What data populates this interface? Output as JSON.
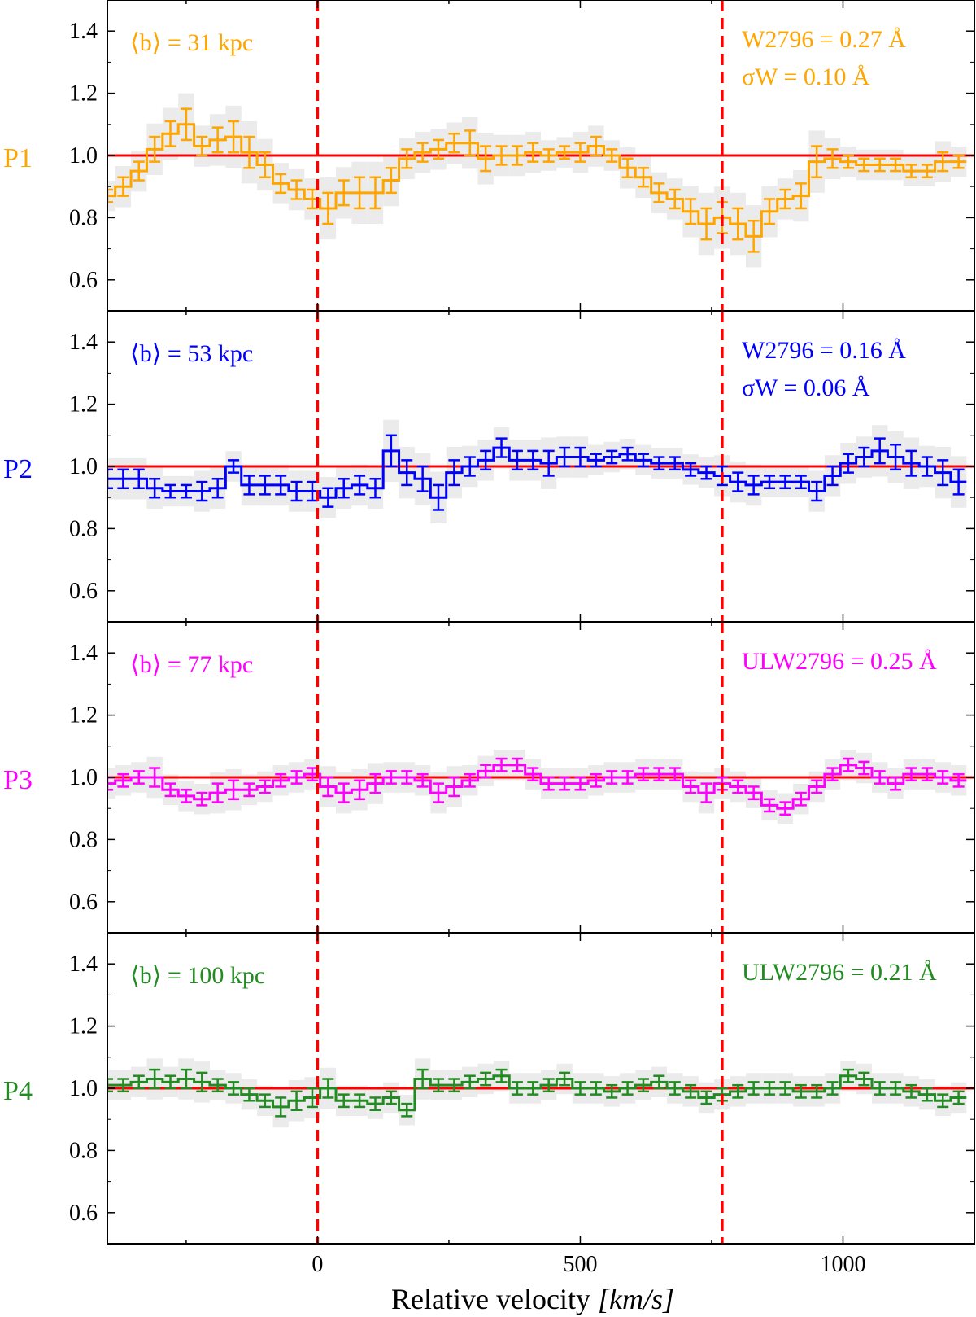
{
  "figure": {
    "xlabel": "Relative velocity",
    "xunit": "[km/s]",
    "reference_line_color": "#ff0000"
  },
  "chart_data": [
    {
      "type": "line",
      "panel": "P1",
      "color": "#ffa500",
      "impact_label": "⟨b⟩ = 31 kpc",
      "ew_label": "W2796 = 0.27 Å",
      "sigma_label": "σW = 0.10 Å",
      "xlim": [
        -400,
        1250
      ],
      "ylim": [
        0.5,
        1.5
      ],
      "xticks": [
        0,
        500,
        1000
      ],
      "yticks": [
        0.6,
        0.8,
        1.0,
        1.2,
        1.4
      ],
      "vlines": [
        0,
        770
      ],
      "hline": 1.0,
      "x": [
        -400,
        -370,
        -340,
        -310,
        -280,
        -250,
        -220,
        -190,
        -160,
        -130,
        -100,
        -70,
        -40,
        -10,
        20,
        50,
        80,
        110,
        140,
        170,
        200,
        230,
        260,
        290,
        320,
        350,
        380,
        410,
        440,
        470,
        500,
        530,
        560,
        590,
        620,
        650,
        680,
        710,
        740,
        770,
        800,
        830,
        860,
        890,
        920,
        950,
        980,
        1010,
        1040,
        1070,
        1100,
        1130,
        1160,
        1190,
        1220
      ],
      "y": [
        0.87,
        0.9,
        0.95,
        1.02,
        1.07,
        1.1,
        1.03,
        1.05,
        1.06,
        1.01,
        0.97,
        0.91,
        0.89,
        0.86,
        0.83,
        0.88,
        0.88,
        0.88,
        0.92,
        0.99,
        1.01,
        1.02,
        1.04,
        1.04,
        0.99,
        1.0,
        1.0,
        1.01,
        1.0,
        1.01,
        1.01,
        1.03,
        1.0,
        0.96,
        0.93,
        0.88,
        0.86,
        0.82,
        0.78,
        0.8,
        0.78,
        0.74,
        0.82,
        0.86,
        0.87,
        0.98,
        0.99,
        0.98,
        0.97,
        0.97,
        0.97,
        0.95,
        0.95,
        0.98,
        0.98
      ],
      "err": [
        0.02,
        0.03,
        0.03,
        0.04,
        0.04,
        0.05,
        0.03,
        0.04,
        0.05,
        0.05,
        0.04,
        0.03,
        0.03,
        0.03,
        0.05,
        0.04,
        0.05,
        0.05,
        0.04,
        0.03,
        0.03,
        0.03,
        0.03,
        0.04,
        0.04,
        0.03,
        0.03,
        0.03,
        0.02,
        0.02,
        0.03,
        0.03,
        0.02,
        0.03,
        0.03,
        0.03,
        0.03,
        0.04,
        0.05,
        0.05,
        0.05,
        0.05,
        0.04,
        0.03,
        0.04,
        0.05,
        0.03,
        0.02,
        0.02,
        0.02,
        0.02,
        0.02,
        0.02,
        0.03,
        0.02
      ]
    },
    {
      "type": "line",
      "panel": "P2",
      "color": "#0000ff",
      "impact_label": "⟨b⟩ = 53 kpc",
      "ew_label": "W2796 = 0.16 Å",
      "sigma_label": "σW = 0.06 Å",
      "xlim": [
        -400,
        1250
      ],
      "ylim": [
        0.5,
        1.5
      ],
      "xticks": [
        0,
        500,
        1000
      ],
      "yticks": [
        0.6,
        0.8,
        1.0,
        1.2,
        1.4
      ],
      "vlines": [
        0,
        770
      ],
      "hline": 1.0,
      "x": [
        -400,
        -370,
        -340,
        -310,
        -280,
        -250,
        -220,
        -190,
        -160,
        -130,
        -100,
        -70,
        -40,
        -10,
        20,
        50,
        80,
        110,
        140,
        170,
        200,
        230,
        260,
        290,
        320,
        350,
        380,
        410,
        440,
        470,
        500,
        530,
        560,
        590,
        620,
        650,
        680,
        710,
        740,
        770,
        800,
        830,
        860,
        890,
        920,
        950,
        980,
        1010,
        1040,
        1070,
        1100,
        1130,
        1160,
        1190,
        1220
      ],
      "y": [
        0.96,
        0.96,
        0.96,
        0.93,
        0.92,
        0.92,
        0.92,
        0.93,
        1.0,
        0.94,
        0.94,
        0.94,
        0.92,
        0.92,
        0.9,
        0.93,
        0.94,
        0.93,
        1.05,
        0.98,
        0.96,
        0.9,
        0.98,
        1.0,
        1.02,
        1.06,
        1.02,
        1.02,
        1.01,
        1.03,
        1.03,
        1.02,
        1.03,
        1.04,
        1.02,
        1.01,
        1.01,
        0.99,
        0.98,
        0.97,
        0.95,
        0.94,
        0.95,
        0.95,
        0.95,
        0.92,
        0.97,
        1.01,
        1.03,
        1.05,
        1.03,
        1.01,
        1.0,
        0.98,
        0.95
      ],
      "err": [
        0.03,
        0.03,
        0.03,
        0.03,
        0.02,
        0.02,
        0.03,
        0.03,
        0.02,
        0.03,
        0.03,
        0.03,
        0.03,
        0.03,
        0.03,
        0.03,
        0.03,
        0.03,
        0.05,
        0.04,
        0.04,
        0.04,
        0.04,
        0.03,
        0.03,
        0.03,
        0.03,
        0.03,
        0.04,
        0.03,
        0.03,
        0.02,
        0.02,
        0.02,
        0.02,
        0.02,
        0.02,
        0.02,
        0.02,
        0.03,
        0.03,
        0.03,
        0.02,
        0.02,
        0.02,
        0.03,
        0.03,
        0.03,
        0.03,
        0.04,
        0.04,
        0.04,
        0.03,
        0.04,
        0.04
      ]
    },
    {
      "type": "line",
      "panel": "P3",
      "color": "#ff00ff",
      "impact_label": "⟨b⟩ = 77 kpc",
      "ew_label": "ULW2796 = 0.25 Å",
      "sigma_label": "",
      "xlim": [
        -400,
        1250
      ],
      "ylim": [
        0.5,
        1.5
      ],
      "xticks": [
        0,
        500,
        1000
      ],
      "yticks": [
        0.6,
        0.8,
        1.0,
        1.2,
        1.4
      ],
      "vlines": [
        0,
        770
      ],
      "hline": 1.0,
      "x": [
        -400,
        -370,
        -340,
        -310,
        -280,
        -250,
        -220,
        -190,
        -160,
        -130,
        -100,
        -70,
        -40,
        -10,
        20,
        50,
        80,
        110,
        140,
        170,
        200,
        230,
        260,
        290,
        320,
        350,
        380,
        410,
        440,
        470,
        500,
        530,
        560,
        590,
        620,
        650,
        680,
        710,
        740,
        770,
        800,
        830,
        860,
        890,
        920,
        950,
        980,
        1010,
        1040,
        1070,
        1100,
        1130,
        1160,
        1190,
        1220
      ],
      "y": [
        0.98,
        0.99,
        1.0,
        1.0,
        0.96,
        0.94,
        0.93,
        0.95,
        0.96,
        0.96,
        0.97,
        0.99,
        1.0,
        1.01,
        0.97,
        0.95,
        0.96,
        0.98,
        1.0,
        1.0,
        0.99,
        0.95,
        0.97,
        0.99,
        1.02,
        1.04,
        1.04,
        1.01,
        0.98,
        0.98,
        0.98,
        0.99,
        1.0,
        1.0,
        1.01,
        1.01,
        1.01,
        0.97,
        0.95,
        0.98,
        0.97,
        0.95,
        0.91,
        0.9,
        0.93,
        0.97,
        1.01,
        1.04,
        1.03,
        1.0,
        0.98,
        1.01,
        1.01,
        1.0,
        0.99
      ],
      "err": [
        0.02,
        0.02,
        0.02,
        0.03,
        0.02,
        0.02,
        0.02,
        0.03,
        0.03,
        0.02,
        0.02,
        0.02,
        0.02,
        0.02,
        0.03,
        0.03,
        0.03,
        0.03,
        0.02,
        0.02,
        0.02,
        0.03,
        0.03,
        0.02,
        0.02,
        0.02,
        0.02,
        0.02,
        0.02,
        0.02,
        0.02,
        0.02,
        0.02,
        0.02,
        0.02,
        0.02,
        0.02,
        0.02,
        0.03,
        0.02,
        0.02,
        0.02,
        0.02,
        0.02,
        0.02,
        0.02,
        0.02,
        0.02,
        0.02,
        0.02,
        0.02,
        0.02,
        0.02,
        0.02,
        0.02
      ]
    },
    {
      "type": "line",
      "panel": "P4",
      "color": "#228b22",
      "impact_label": "⟨b⟩ = 100 kpc",
      "ew_label": "ULW2796 = 0.21 Å",
      "sigma_label": "",
      "xlim": [
        -400,
        1250
      ],
      "ylim": [
        0.5,
        1.5
      ],
      "xticks": [
        0,
        500,
        1000
      ],
      "yticks": [
        0.6,
        0.8,
        1.0,
        1.2,
        1.4
      ],
      "vlines": [
        0,
        770
      ],
      "hline": 1.0,
      "x": [
        -400,
        -370,
        -340,
        -310,
        -280,
        -250,
        -220,
        -190,
        -160,
        -130,
        -100,
        -70,
        -40,
        -10,
        20,
        50,
        80,
        110,
        140,
        170,
        200,
        230,
        260,
        290,
        320,
        350,
        380,
        410,
        440,
        470,
        500,
        530,
        560,
        590,
        620,
        650,
        680,
        710,
        740,
        770,
        800,
        830,
        860,
        890,
        920,
        950,
        980,
        1010,
        1040,
        1070,
        1100,
        1130,
        1160,
        1190,
        1220
      ],
      "y": [
        1.01,
        1.01,
        1.02,
        1.03,
        1.02,
        1.03,
        1.02,
        1.01,
        1.0,
        0.98,
        0.96,
        0.94,
        0.96,
        0.97,
        1.0,
        0.96,
        0.96,
        0.95,
        0.97,
        0.93,
        1.03,
        1.01,
        1.01,
        1.02,
        1.03,
        1.04,
        1.0,
        1.0,
        1.01,
        1.03,
        1.0,
        1.0,
        0.99,
        1.0,
        1.01,
        1.02,
        1.0,
        0.99,
        0.97,
        0.98,
        0.99,
        1.0,
        1.0,
        1.0,
        0.99,
        0.99,
        1.0,
        1.04,
        1.03,
        1.0,
        1.0,
        0.99,
        0.98,
        0.96,
        0.97
      ],
      "err": [
        0.02,
        0.02,
        0.02,
        0.03,
        0.02,
        0.03,
        0.03,
        0.02,
        0.02,
        0.02,
        0.02,
        0.03,
        0.03,
        0.03,
        0.03,
        0.02,
        0.02,
        0.02,
        0.02,
        0.02,
        0.03,
        0.02,
        0.02,
        0.02,
        0.02,
        0.02,
        0.02,
        0.02,
        0.02,
        0.02,
        0.02,
        0.02,
        0.02,
        0.02,
        0.02,
        0.02,
        0.02,
        0.02,
        0.02,
        0.02,
        0.02,
        0.02,
        0.02,
        0.02,
        0.02,
        0.02,
        0.02,
        0.02,
        0.02,
        0.02,
        0.02,
        0.02,
        0.02,
        0.02,
        0.02
      ]
    }
  ]
}
